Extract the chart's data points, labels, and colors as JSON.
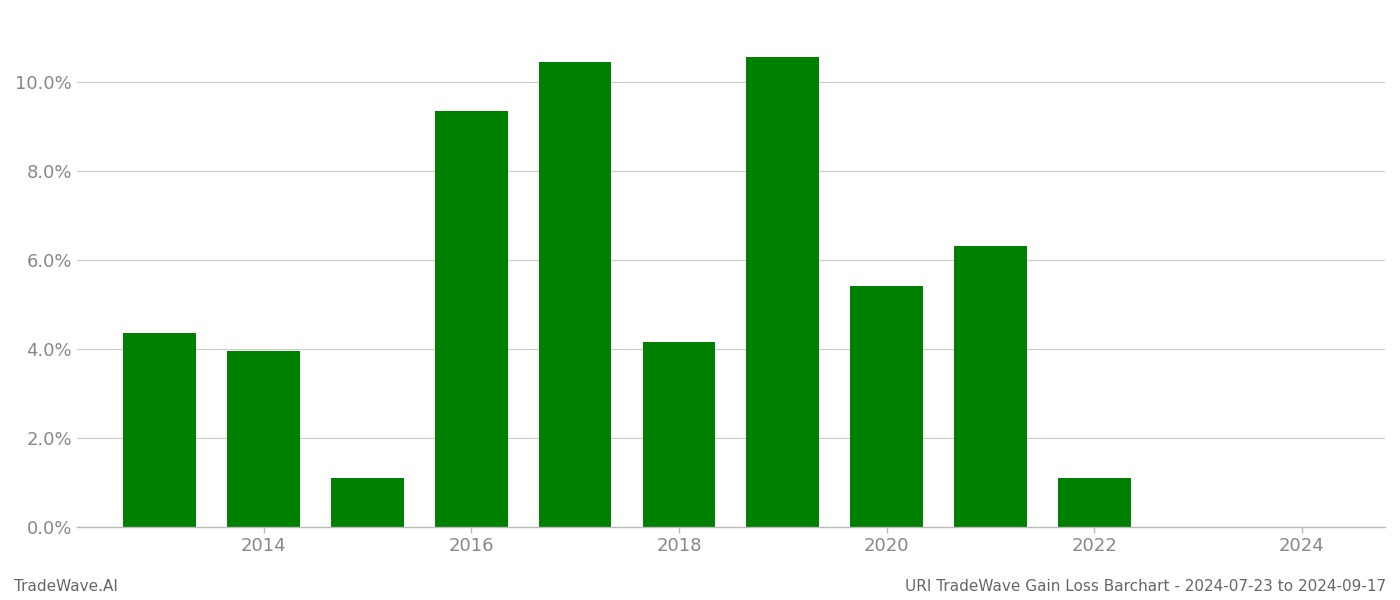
{
  "years": [
    2013,
    2014,
    2015,
    2016,
    2017,
    2018,
    2019,
    2020,
    2021,
    2022,
    2023
  ],
  "values": [
    0.0435,
    0.0395,
    0.011,
    0.0935,
    0.1045,
    0.0415,
    0.1055,
    0.054,
    0.063,
    0.011,
    0.0
  ],
  "bar_color": "#008000",
  "background_color": "#ffffff",
  "xtick_positions": [
    2014,
    2016,
    2018,
    2020,
    2022,
    2024
  ],
  "xtick_labels": [
    "2014",
    "2016",
    "2018",
    "2020",
    "2022",
    "2024"
  ],
  "ytick_values": [
    0.0,
    0.02,
    0.04,
    0.06,
    0.08,
    0.1
  ],
  "xlim": [
    2012.2,
    2024.8
  ],
  "ylim": [
    0,
    0.115
  ],
  "bar_width": 0.7,
  "footer_left": "TradeWave.AI",
  "footer_right": "URI TradeWave Gain Loss Barchart - 2024-07-23 to 2024-09-17",
  "grid_color": "#cccccc",
  "tick_color": "#888888",
  "footer_color": "#666666"
}
